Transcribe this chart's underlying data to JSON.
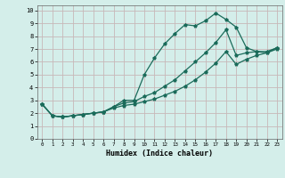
{
  "xlabel": "Humidex (Indice chaleur)",
  "bg_color": "#d4eeea",
  "grid_color": "#c8b8b8",
  "line_color": "#1a6b5a",
  "xlim": [
    -0.5,
    23.5
  ],
  "ylim": [
    0,
    10.4
  ],
  "xticks": [
    0,
    1,
    2,
    3,
    4,
    5,
    6,
    7,
    8,
    9,
    10,
    11,
    12,
    13,
    14,
    15,
    16,
    17,
    18,
    19,
    20,
    21,
    22,
    23
  ],
  "yticks": [
    0,
    1,
    2,
    3,
    4,
    5,
    6,
    7,
    8,
    9,
    10
  ],
  "line1_x": [
    0,
    1,
    2,
    3,
    4,
    5,
    6,
    7,
    8,
    9,
    10,
    11,
    12,
    13,
    14,
    15,
    16,
    17,
    18,
    19,
    20,
    21,
    22,
    23
  ],
  "line1_y": [
    2.7,
    1.8,
    1.7,
    1.8,
    1.9,
    2.0,
    2.1,
    2.5,
    3.0,
    3.0,
    5.0,
    6.3,
    7.4,
    8.2,
    8.9,
    8.8,
    9.2,
    9.8,
    9.3,
    8.7,
    7.1,
    6.8,
    6.7,
    7.1
  ],
  "line2_x": [
    0,
    1,
    2,
    3,
    4,
    5,
    6,
    7,
    8,
    9,
    10,
    11,
    12,
    13,
    14,
    15,
    16,
    17,
    18,
    19,
    20,
    21,
    22,
    23
  ],
  "line2_y": [
    2.7,
    1.8,
    1.7,
    1.8,
    1.9,
    2.0,
    2.1,
    2.5,
    2.8,
    2.9,
    3.3,
    3.6,
    4.1,
    4.6,
    5.3,
    6.0,
    6.7,
    7.5,
    8.5,
    6.5,
    6.7,
    6.8,
    6.8,
    7.1
  ],
  "line3_x": [
    0,
    1,
    2,
    3,
    4,
    5,
    6,
    7,
    8,
    9,
    10,
    11,
    12,
    13,
    14,
    15,
    16,
    17,
    18,
    19,
    20,
    21,
    22,
    23
  ],
  "line3_y": [
    2.7,
    1.8,
    1.7,
    1.8,
    1.9,
    2.0,
    2.1,
    2.4,
    2.6,
    2.7,
    2.9,
    3.1,
    3.4,
    3.7,
    4.1,
    4.6,
    5.2,
    5.9,
    6.8,
    5.8,
    6.2,
    6.5,
    6.7,
    7.0
  ]
}
